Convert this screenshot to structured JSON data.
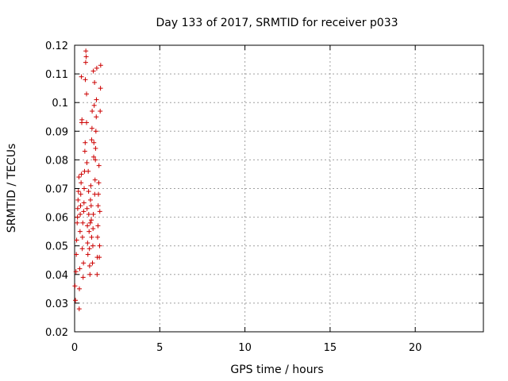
{
  "chart_data": {
    "type": "scatter",
    "title": "Day 133 of 2017, SRMTID for receiver p033",
    "xlabel": "GPS time / hours",
    "ylabel": "SRMTID / TECUs",
    "xlim": [
      0,
      24
    ],
    "ylim": [
      0.02,
      0.12
    ],
    "x_ticks": [
      0,
      5,
      10,
      15,
      20
    ],
    "x_tick_labels": [
      "0",
      "5",
      "10",
      "15",
      "20"
    ],
    "y_ticks": [
      0.02,
      0.03,
      0.04,
      0.05,
      0.06,
      0.07,
      0.08,
      0.09,
      0.1,
      0.11,
      0.12
    ],
    "y_tick_labels": [
      "0.02",
      "0.03",
      "0.04",
      "0.05",
      "0.06",
      "0.07",
      "0.08",
      "0.09",
      "0.1",
      "0.11",
      "0.12"
    ],
    "grid": true,
    "marker": "+",
    "color": "#cc0000",
    "points": [
      [
        0.02,
        0.036
      ],
      [
        0.05,
        0.031
      ],
      [
        0.08,
        0.041
      ],
      [
        0.1,
        0.047
      ],
      [
        0.12,
        0.052
      ],
      [
        0.15,
        0.058
      ],
      [
        0.17,
        0.06
      ],
      [
        0.18,
        0.063
      ],
      [
        0.2,
        0.066
      ],
      [
        0.22,
        0.069
      ],
      [
        0.25,
        0.074
      ],
      [
        0.27,
        0.028
      ],
      [
        0.28,
        0.035
      ],
      [
        0.3,
        0.042
      ],
      [
        0.32,
        0.055
      ],
      [
        0.33,
        0.061
      ],
      [
        0.35,
        0.064
      ],
      [
        0.36,
        0.068
      ],
      [
        0.38,
        0.072
      ],
      [
        0.4,
        0.075
      ],
      [
        0.4,
        0.109
      ],
      [
        0.42,
        0.093
      ],
      [
        0.43,
        0.094
      ],
      [
        0.45,
        0.049
      ],
      [
        0.46,
        0.053
      ],
      [
        0.48,
        0.058
      ],
      [
        0.5,
        0.039
      ],
      [
        0.52,
        0.044
      ],
      [
        0.53,
        0.062
      ],
      [
        0.55,
        0.065
      ],
      [
        0.56,
        0.07
      ],
      [
        0.58,
        0.076
      ],
      [
        0.6,
        0.083
      ],
      [
        0.62,
        0.086
      ],
      [
        0.63,
        0.108
      ],
      [
        0.65,
        0.114
      ],
      [
        0.66,
        0.118
      ],
      [
        0.68,
        0.116
      ],
      [
        0.7,
        0.103
      ],
      [
        0.7,
        0.093
      ],
      [
        0.72,
        0.079
      ],
      [
        0.73,
        0.063
      ],
      [
        0.75,
        0.057
      ],
      [
        0.76,
        0.051
      ],
      [
        0.78,
        0.047
      ],
      [
        0.8,
        0.076
      ],
      [
        0.82,
        0.069
      ],
      [
        0.83,
        0.061
      ],
      [
        0.85,
        0.055
      ],
      [
        0.87,
        0.049
      ],
      [
        0.88,
        0.043
      ],
      [
        0.9,
        0.04
      ],
      [
        0.92,
        0.058
      ],
      [
        0.93,
        0.066
      ],
      [
        0.95,
        0.071
      ],
      [
        0.97,
        0.064
      ],
      [
        0.98,
        0.059
      ],
      [
        1.0,
        0.053
      ],
      [
        1.0,
        0.087
      ],
      [
        1.02,
        0.091
      ],
      [
        1.03,
        0.097
      ],
      [
        1.05,
        0.044
      ],
      [
        1.07,
        0.05
      ],
      [
        1.08,
        0.056
      ],
      [
        1.1,
        0.061
      ],
      [
        1.1,
        0.111
      ],
      [
        1.12,
        0.081
      ],
      [
        1.13,
        0.086
      ],
      [
        1.15,
        0.099
      ],
      [
        1.17,
        0.107
      ],
      [
        1.18,
        0.068
      ],
      [
        1.2,
        0.073
      ],
      [
        1.22,
        0.08
      ],
      [
        1.23,
        0.084
      ],
      [
        1.25,
        0.09
      ],
      [
        1.27,
        0.095
      ],
      [
        1.28,
        0.101
      ],
      [
        1.3,
        0.112
      ],
      [
        1.32,
        0.04
      ],
      [
        1.33,
        0.046
      ],
      [
        1.35,
        0.053
      ],
      [
        1.37,
        0.057
      ],
      [
        1.38,
        0.064
      ],
      [
        1.4,
        0.068
      ],
      [
        1.42,
        0.072
      ],
      [
        1.43,
        0.078
      ],
      [
        1.45,
        0.046
      ],
      [
        1.47,
        0.05
      ],
      [
        1.48,
        0.062
      ],
      [
        1.5,
        0.097
      ],
      [
        1.52,
        0.105
      ],
      [
        1.53,
        0.113
      ]
    ]
  }
}
